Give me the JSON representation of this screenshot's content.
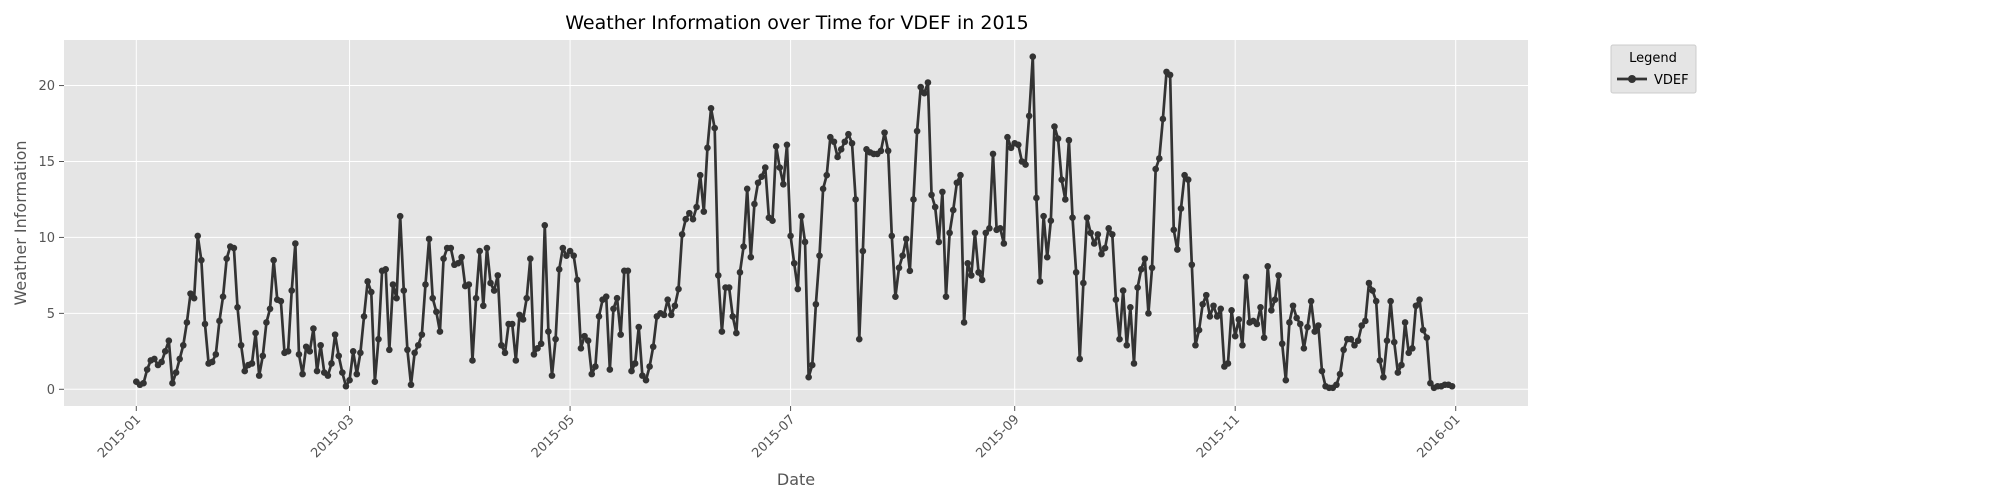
{
  "chart_data": {
    "type": "line",
    "title": "Weather Information over Time for VDEF in 2015",
    "xlabel": "Date",
    "ylabel": "Weather Information",
    "x_axis": {
      "kind": "date",
      "range": [
        "2014-12-12",
        "2016-01-21"
      ],
      "ticks": [
        "2015-01",
        "2015-03",
        "2015-05",
        "2015-07",
        "2015-09",
        "2015-11",
        "2016-01"
      ]
    },
    "y_axis": {
      "range": [
        -1.1,
        23
      ],
      "ticks": [
        "0",
        "5",
        "10",
        "15",
        "20"
      ]
    },
    "grid": true,
    "legend": {
      "title": "Legend",
      "placement": "outside-top-right",
      "entries": [
        "VDEF"
      ]
    },
    "series": [
      {
        "name": "VDEF",
        "color": "#333333",
        "start_date": "2015-01-01",
        "step_days": 1,
        "values": [
          0.5,
          0.3,
          0.4,
          1.3,
          1.9,
          2.0,
          1.6,
          1.8,
          2.5,
          3.2,
          0.4,
          1.1,
          2.0,
          2.9,
          4.4,
          6.3,
          6.0,
          10.1,
          8.5,
          4.3,
          1.7,
          1.8,
          2.3,
          4.5,
          6.1,
          8.6,
          9.4,
          9.3,
          5.4,
          2.9,
          1.2,
          1.6,
          1.7,
          3.7,
          0.9,
          2.2,
          4.4,
          5.3,
          8.5,
          5.9,
          5.8,
          2.4,
          2.5,
          6.5,
          9.6,
          2.3,
          1.0,
          2.8,
          2.5,
          4.0,
          1.2,
          2.9,
          1.1,
          0.9,
          1.7,
          3.6,
          2.2,
          1.1,
          0.2,
          0.6,
          2.5,
          1.0,
          2.4,
          4.8,
          7.1,
          6.4,
          0.5,
          3.3,
          7.8,
          7.9,
          2.6,
          6.9,
          6.0,
          11.4,
          6.5,
          2.6,
          0.3,
          2.4,
          2.9,
          3.6,
          6.9,
          9.9,
          6.0,
          5.1,
          3.8,
          8.6,
          9.3,
          9.3,
          8.2,
          8.3,
          8.7,
          6.8,
          6.9,
          1.9,
          6.0,
          9.1,
          5.5,
          9.3,
          7.0,
          6.5,
          7.5,
          2.9,
          2.4,
          4.3,
          4.3,
          1.9,
          4.9,
          4.6,
          6.0,
          8.6,
          2.3,
          2.7,
          3.0,
          10.8,
          3.8,
          0.9,
          3.3,
          7.9,
          9.3,
          8.8,
          9.1,
          8.8,
          7.2,
          2.7,
          3.5,
          3.2,
          1.0,
          1.5,
          4.8,
          5.9,
          6.1,
          1.3,
          5.3,
          6.0,
          3.6,
          7.8,
          7.8,
          1.2,
          1.7,
          4.1,
          0.9,
          0.6,
          1.5,
          2.8,
          4.8,
          5.0,
          4.9,
          5.9,
          4.9,
          5.5,
          6.6,
          10.2,
          11.2,
          11.6,
          11.2,
          12.0,
          14.1,
          11.7,
          15.9,
          18.5,
          17.2,
          7.5,
          3.8,
          6.7,
          6.7,
          4.8,
          3.7,
          7.7,
          9.4,
          13.2,
          8.7,
          12.2,
          13.6,
          14.0,
          14.6,
          11.3,
          11.1,
          16.0,
          14.6,
          13.5,
          16.1,
          10.1,
          8.3,
          6.6,
          11.4,
          9.7,
          0.8,
          1.6,
          5.6,
          8.8,
          13.2,
          14.1,
          16.6,
          16.3,
          15.3,
          15.8,
          16.3,
          16.8,
          16.2,
          12.5,
          3.3,
          9.1,
          15.8,
          15.6,
          15.5,
          15.5,
          15.7,
          16.9,
          15.7,
          10.1,
          6.1,
          8.0,
          8.8,
          9.9,
          7.8,
          12.5,
          17.0,
          19.9,
          19.5,
          20.2,
          12.8,
          12.0,
          9.7,
          13.0,
          6.1,
          10.3,
          11.8,
          13.6,
          14.1,
          4.4,
          8.3,
          7.5,
          10.3,
          7.7,
          7.2,
          10.3,
          10.6,
          15.5,
          10.5,
          10.6,
          9.6,
          16.6,
          15.9,
          16.2,
          16.1,
          15.0,
          14.8,
          18.0,
          21.9,
          12.6,
          7.1,
          11.4,
          8.7,
          11.1,
          17.3,
          16.5,
          13.8,
          12.5,
          16.4,
          11.3,
          7.7,
          2.0,
          7.0,
          11.3,
          10.3,
          9.6,
          10.2,
          8.9,
          9.3,
          10.6,
          10.2,
          5.9,
          3.3,
          6.5,
          2.9,
          5.4,
          1.7,
          6.7,
          7.9,
          8.6,
          5.0,
          8.0,
          14.5,
          15.2,
          17.8,
          20.9,
          20.7,
          10.5,
          9.2,
          11.9,
          14.1,
          13.8,
          8.2,
          2.9,
          3.9,
          5.6,
          6.2,
          4.8,
          5.5,
          4.8,
          5.3,
          1.5,
          1.7,
          5.2,
          3.5,
          4.6,
          2.9,
          7.4,
          4.4,
          4.5,
          4.3,
          5.4,
          3.4,
          8.1,
          5.2,
          5.9,
          7.5,
          3.0,
          0.6,
          4.4,
          5.5,
          4.7,
          4.3,
          2.7,
          4.1,
          5.8,
          3.8,
          4.2,
          1.2,
          0.2,
          0.1,
          0.1,
          0.3,
          1.0,
          2.6,
          3.3,
          3.3,
          2.9,
          3.2,
          4.2,
          4.5,
          7.0,
          6.5,
          5.8,
          1.9,
          0.8,
          3.2,
          5.8,
          3.1,
          1.1,
          1.6,
          4.4,
          2.4,
          2.7,
          5.5,
          5.9,
          3.9,
          3.4,
          0.4,
          0.1,
          0.2,
          0.2,
          0.3,
          0.3,
          0.2
        ]
      }
    ]
  }
}
